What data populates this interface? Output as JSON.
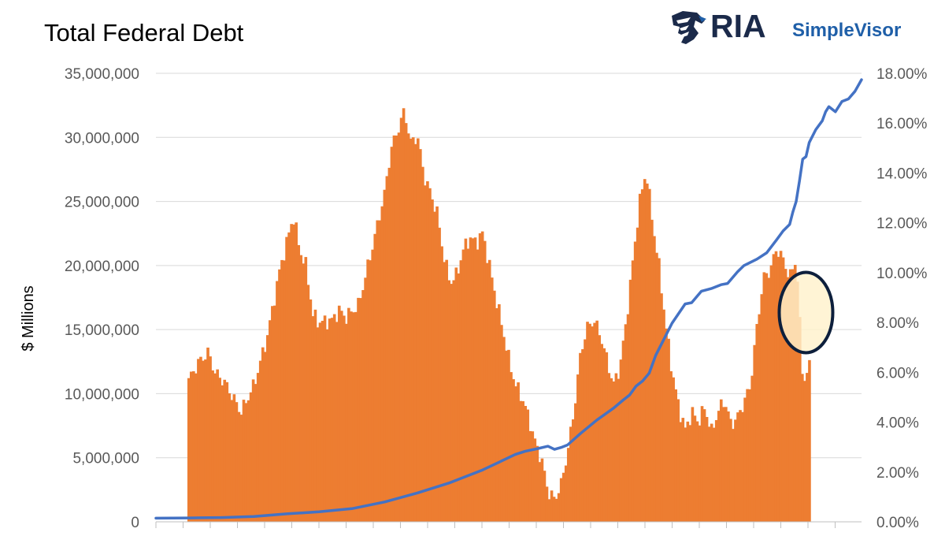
{
  "brand": {
    "name": "RIA",
    "product": "SimpleVisor",
    "icon": "eagle-head-icon",
    "colors": {
      "navy": "#1b2a4a",
      "blue": "#1f5fa8"
    }
  },
  "colors": {
    "bars": "#ed7d31",
    "line": "#4472c4",
    "highlight_fill": "#fff2cc",
    "highlight_stroke": "#0d1f3c",
    "gridline": "#d9d9d9",
    "axis_text": "#595959"
  },
  "chart_data": {
    "type": "bar",
    "title": "Total Federal Debt",
    "ylabel": "$ Millions",
    "ylim": [
      0,
      35000000
    ],
    "yticks": [
      "0",
      "5,000,000",
      "10,000,000",
      "15,000,000",
      "20,000,000",
      "25,000,000",
      "30,000,000",
      "35,000,000"
    ],
    "y2lim": [
      0,
      18
    ],
    "y2ticks": [
      "0.00%",
      "2.00%",
      "4.00%",
      "6.00%",
      "8.00%",
      "10.00%",
      "12.00%",
      "14.00%",
      "16.00%",
      "18.00%"
    ],
    "grid": true,
    "series": [
      {
        "type": "bar",
        "axis": "right",
        "points": [
          [
            0.1,
            5.7
          ],
          [
            0.13,
            6.4
          ],
          [
            0.16,
            6.8
          ],
          [
            0.18,
            6.0
          ],
          [
            0.21,
            5.6
          ],
          [
            0.26,
            4.4
          ],
          [
            0.3,
            5.5
          ],
          [
            0.34,
            7.4
          ],
          [
            0.38,
            10.2
          ],
          [
            0.4,
            11.2
          ],
          [
            0.42,
            12.3
          ],
          [
            0.44,
            10.9
          ],
          [
            0.46,
            10.2
          ],
          [
            0.48,
            8.3
          ],
          [
            0.5,
            8.0
          ],
          [
            0.54,
            8.1
          ],
          [
            0.56,
            8.5
          ],
          [
            0.58,
            8.2
          ],
          [
            0.62,
            8.7
          ],
          [
            0.66,
            10.9
          ],
          [
            0.7,
            13.2
          ],
          [
            0.72,
            15.0
          ],
          [
            0.74,
            15.7
          ],
          [
            0.76,
            16.5
          ],
          [
            0.78,
            15.2
          ],
          [
            0.8,
            15.5
          ],
          [
            0.82,
            13.9
          ],
          [
            0.84,
            13.2
          ],
          [
            0.86,
            12.4
          ],
          [
            0.88,
            10.7
          ],
          [
            0.9,
            9.6
          ],
          [
            0.92,
            9.9
          ],
          [
            0.94,
            10.9
          ],
          [
            0.96,
            11.4
          ],
          [
            0.98,
            11.2
          ],
          [
            1.0,
            11.6
          ],
          [
            1.02,
            10.3
          ],
          [
            1.04,
            9.0
          ],
          [
            1.06,
            7.8
          ],
          [
            1.08,
            6.5
          ],
          [
            1.1,
            5.5
          ],
          [
            1.12,
            5.0
          ],
          [
            1.14,
            4.2
          ],
          [
            1.16,
            3.2
          ],
          [
            1.18,
            2.5
          ],
          [
            1.2,
            1.2
          ],
          [
            1.22,
            0.9
          ],
          [
            1.24,
            1.5
          ],
          [
            1.26,
            2.8
          ],
          [
            1.28,
            4.5
          ],
          [
            1.3,
            6.8
          ],
          [
            1.32,
            7.8
          ],
          [
            1.34,
            8.1
          ],
          [
            1.36,
            7.5
          ],
          [
            1.38,
            6.5
          ],
          [
            1.4,
            5.5
          ],
          [
            1.42,
            6.2
          ],
          [
            1.44,
            8.1
          ],
          [
            1.46,
            10.5
          ],
          [
            1.48,
            12.8
          ],
          [
            1.5,
            14.1
          ],
          [
            1.52,
            12.0
          ],
          [
            1.54,
            10.2
          ],
          [
            1.56,
            7.9
          ],
          [
            1.58,
            6.0
          ],
          [
            1.6,
            4.6
          ],
          [
            1.62,
            3.7
          ],
          [
            1.64,
            4.4
          ],
          [
            1.66,
            4.0
          ],
          [
            1.68,
            4.6
          ],
          [
            1.7,
            3.6
          ],
          [
            1.72,
            4.4
          ],
          [
            1.74,
            4.9
          ],
          [
            1.76,
            3.9
          ],
          [
            1.78,
            4.2
          ],
          [
            1.8,
            4.8
          ],
          [
            1.82,
            5.5
          ],
          [
            1.84,
            7.9
          ],
          [
            1.86,
            9.8
          ],
          [
            1.88,
            10.1
          ],
          [
            1.9,
            11.0
          ],
          [
            1.92,
            10.5
          ],
          [
            1.94,
            9.8
          ],
          [
            1.96,
            10.6
          ],
          [
            1.98,
            5.6
          ],
          [
            2.0,
            6.2
          ]
        ]
      },
      {
        "type": "line",
        "axis": "left",
        "points": [
          [
            0.0,
            280000
          ],
          [
            0.1,
            300000
          ],
          [
            0.2,
            330000
          ],
          [
            0.3,
            420000
          ],
          [
            0.4,
            620000
          ],
          [
            0.5,
            780000
          ],
          [
            0.6,
            1030000
          ],
          [
            0.7,
            1550000
          ],
          [
            0.8,
            2250000
          ],
          [
            0.9,
            3050000
          ],
          [
            1.0,
            4050000
          ],
          [
            1.05,
            4650000
          ],
          [
            1.1,
            5250000
          ],
          [
            1.13,
            5500000
          ],
          [
            1.17,
            5720000
          ],
          [
            1.2,
            5900000
          ],
          [
            1.22,
            5650000
          ],
          [
            1.24,
            5800000
          ],
          [
            1.26,
            6000000
          ],
          [
            1.3,
            6900000
          ],
          [
            1.35,
            7950000
          ],
          [
            1.4,
            8850000
          ],
          [
            1.43,
            9500000
          ],
          [
            1.45,
            9900000
          ],
          [
            1.47,
            10600000
          ],
          [
            1.49,
            11000000
          ],
          [
            1.51,
            11600000
          ],
          [
            1.53,
            13000000
          ],
          [
            1.55,
            14000000
          ],
          [
            1.58,
            15500000
          ],
          [
            1.62,
            17000000
          ],
          [
            1.64,
            17100000
          ],
          [
            1.67,
            18000000
          ],
          [
            1.7,
            18200000
          ],
          [
            1.73,
            18500000
          ],
          [
            1.75,
            18600000
          ],
          [
            1.78,
            19500000
          ],
          [
            1.8,
            20000000
          ],
          [
            1.84,
            20500000
          ],
          [
            1.87,
            21000000
          ],
          [
            1.9,
            22000000
          ],
          [
            1.92,
            22700000
          ],
          [
            1.94,
            23200000
          ],
          [
            1.95,
            24200000
          ],
          [
            1.96,
            25000000
          ],
          [
            1.97,
            26600000
          ],
          [
            1.98,
            28300000
          ],
          [
            1.99,
            28500000
          ],
          [
            2.0,
            29600000
          ],
          [
            2.02,
            30600000
          ],
          [
            2.04,
            31300000
          ],
          [
            2.05,
            32000000
          ],
          [
            2.06,
            32400000
          ],
          [
            2.08,
            32000000
          ],
          [
            2.1,
            32800000
          ],
          [
            2.12,
            33000000
          ],
          [
            2.14,
            33600000
          ],
          [
            2.16,
            34500000
          ]
        ]
      }
    ],
    "annotation": {
      "type": "ellipse",
      "at": [
        1.99,
        8.4
      ]
    }
  }
}
